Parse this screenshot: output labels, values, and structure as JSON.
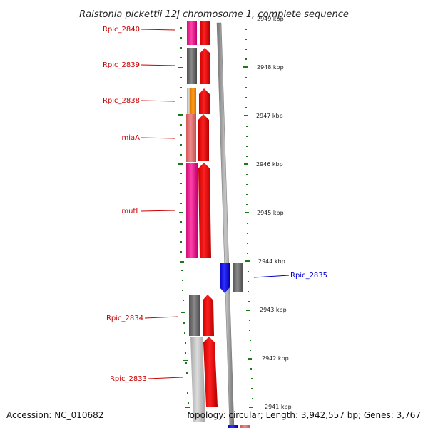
{
  "title": "Ralstonia pickettii 12J chromosome 1, complete sequence",
  "footer": {
    "accession": "Accession: NC_010682",
    "topology": "Topology: circular; Length: 3,942,557 bp; Genes: 3,767"
  },
  "ruler": [
    {
      "label": "2949 kbp"
    },
    {
      "label": "2948 kbp"
    },
    {
      "label": "2947 kbp"
    },
    {
      "label": "2946 kbp"
    },
    {
      "label": "2945 kbp"
    },
    {
      "label": "2944 kbp"
    },
    {
      "label": "2943 kbp"
    },
    {
      "label": "2942 kbp"
    },
    {
      "label": "2941 kbp"
    }
  ],
  "gene_labels": [
    {
      "name": "Rpic_2840",
      "color": "#cc0000"
    },
    {
      "name": "Rpic_2839",
      "color": "#cc0000"
    },
    {
      "name": "Rpic_2838",
      "color": "#cc0000"
    },
    {
      "name": "miaA",
      "color": "#cc0000"
    },
    {
      "name": "mutL",
      "color": "#cc0000"
    },
    {
      "name": "Rpic_2835",
      "color": "#0000cc"
    },
    {
      "name": "Rpic_2834",
      "color": "#cc0000"
    },
    {
      "name": "Rpic_2833",
      "color": "#cc0000"
    }
  ],
  "colors": {
    "forward_cds": "#ff0000",
    "reverse_cds": "#0000ff",
    "backbone": "#808080",
    "ruler_tick": "#1a7a1a"
  }
}
